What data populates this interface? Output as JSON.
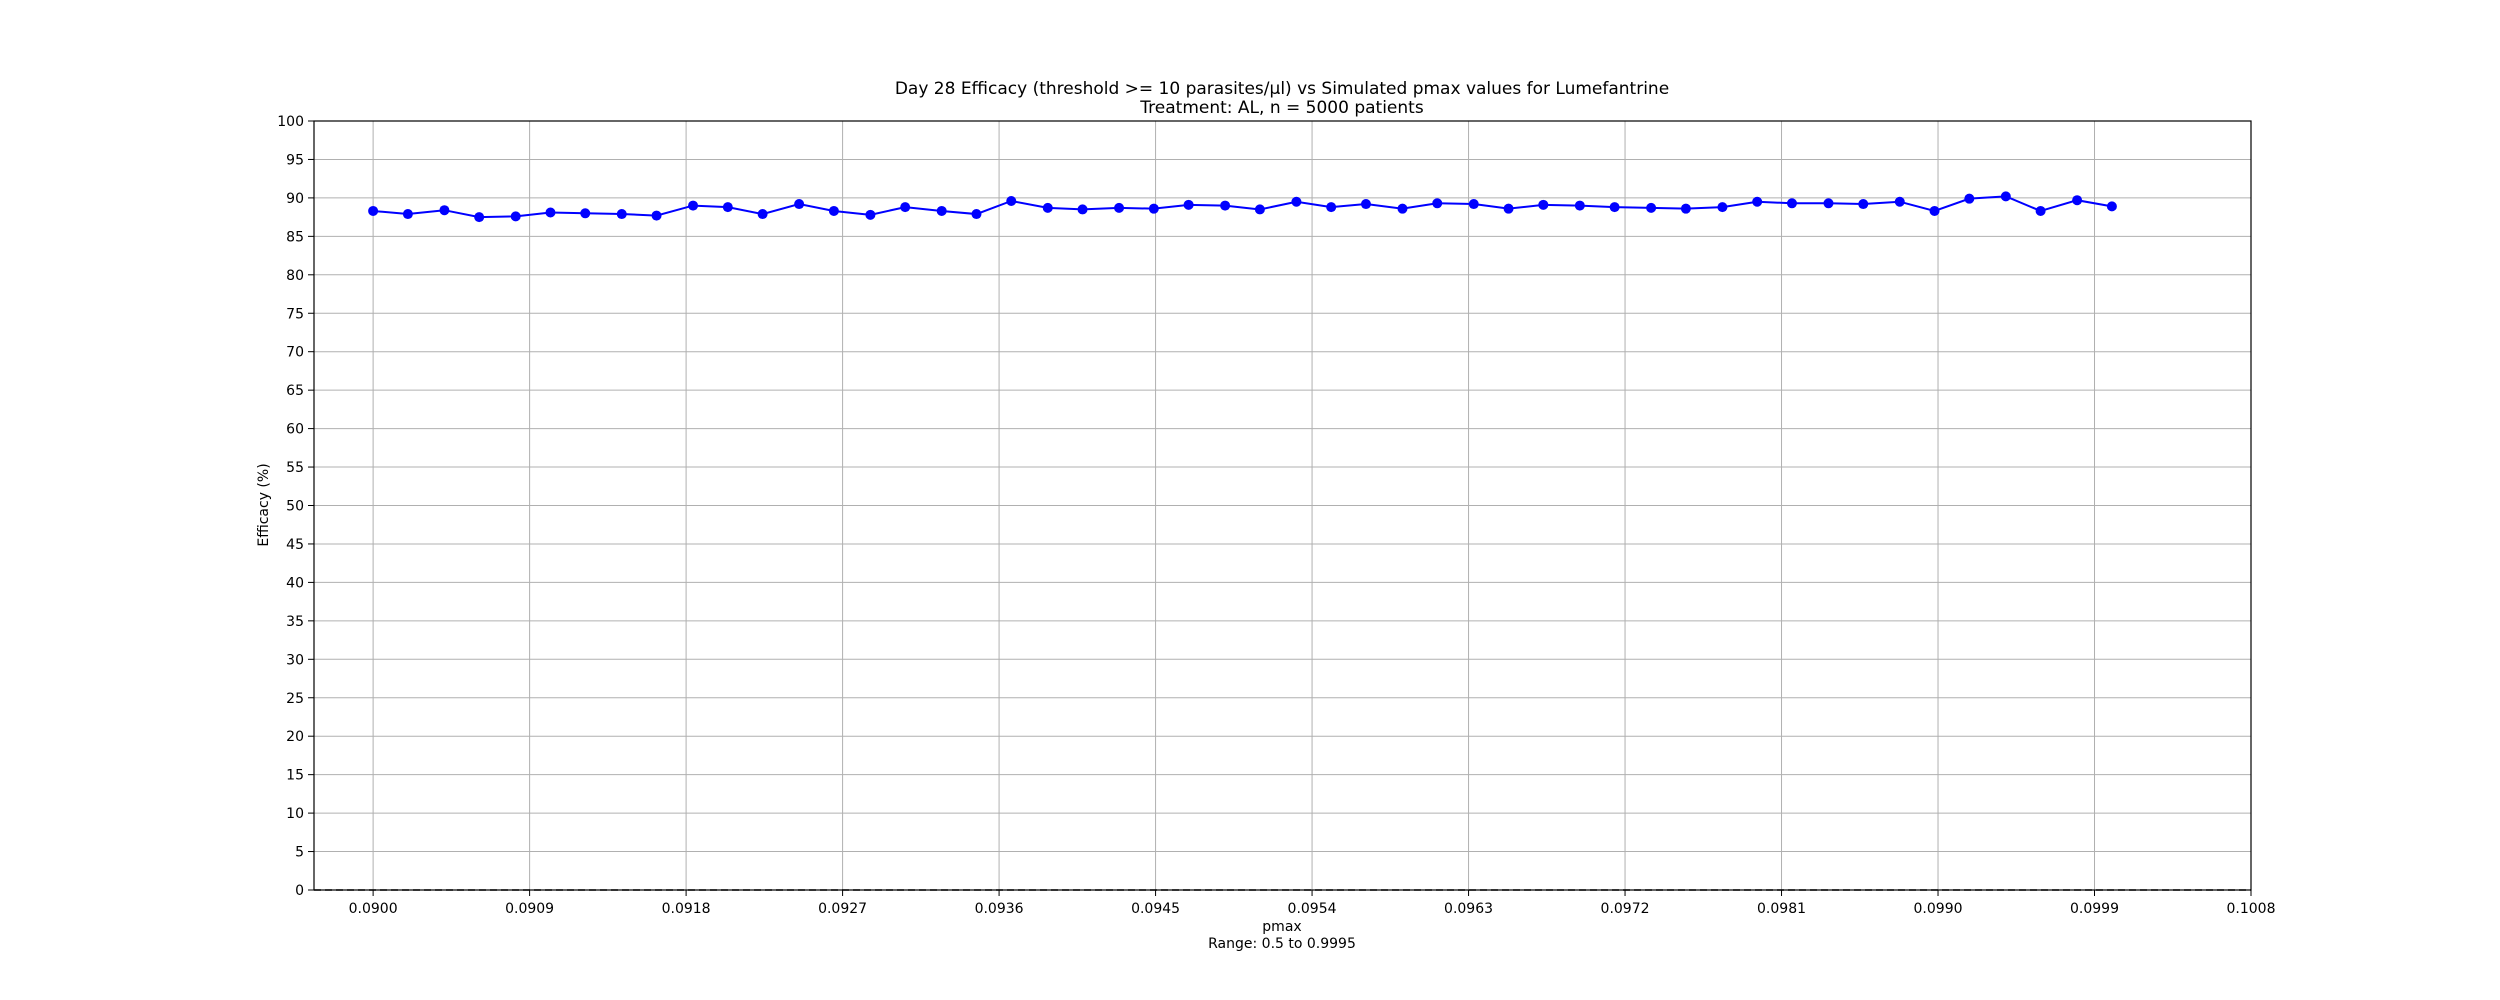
{
  "chart_data": {
    "type": "line",
    "title": "Day 28 Efficacy (threshold >= 10 parasites/µl) vs Simulated pmax values for Lumefantrine",
    "subtitle": "Treatment: AL, n = 5000 patients",
    "xlabel": "pmax",
    "xlabel_note": "Range: 0.5 to 0.9995",
    "ylabel": "Efficacy (%)",
    "xlim": [
      0.08966,
      0.1008
    ],
    "ylim": [
      0,
      100
    ],
    "xticks": [
      "0.0900",
      "0.0909",
      "0.0918",
      "0.0927",
      "0.0936",
      "0.0945",
      "0.0954",
      "0.0963",
      "0.0972",
      "0.0981",
      "0.0990",
      "0.0999",
      "0.1008"
    ],
    "yticks": [
      0,
      5,
      10,
      15,
      20,
      25,
      30,
      35,
      40,
      45,
      50,
      55,
      60,
      65,
      70,
      75,
      80,
      85,
      90,
      95,
      100
    ],
    "grid": true,
    "reference_line": {
      "y": 0,
      "style": "dashed",
      "color": "#000000"
    },
    "series": [
      {
        "color": "#0000ff",
        "marker": "circle",
        "x": [
          0.09,
          0.0902,
          0.09041,
          0.09061,
          0.09082,
          0.09102,
          0.09122,
          0.09143,
          0.09163,
          0.09184,
          0.09204,
          0.09224,
          0.09245,
          0.09265,
          0.09286,
          0.09306,
          0.09327,
          0.09347,
          0.09367,
          0.09388,
          0.09408,
          0.09429,
          0.09449,
          0.09469,
          0.0949,
          0.0951,
          0.09531,
          0.09551,
          0.09571,
          0.09592,
          0.09612,
          0.09633,
          0.09653,
          0.09673,
          0.09694,
          0.09714,
          0.09735,
          0.09755,
          0.09776,
          0.09796,
          0.09816,
          0.09837,
          0.09857,
          0.09878,
          0.09898,
          0.09918,
          0.09939,
          0.09959,
          0.0998,
          0.1
        ],
        "y": [
          88.3,
          87.9,
          88.4,
          87.5,
          87.6,
          88.1,
          88.0,
          87.9,
          87.7,
          89.0,
          88.8,
          87.9,
          89.2,
          88.3,
          87.8,
          88.8,
          88.3,
          87.9,
          89.6,
          88.7,
          88.5,
          88.7,
          88.6,
          89.1,
          89.0,
          88.5,
          89.5,
          88.8,
          89.2,
          88.6,
          89.3,
          89.2,
          88.6,
          89.1,
          89.0,
          88.8,
          88.7,
          88.6,
          88.8,
          89.5,
          89.3,
          89.3,
          89.2,
          89.5,
          88.3,
          89.9,
          90.2,
          88.3,
          89.7,
          88.9
        ]
      }
    ]
  }
}
